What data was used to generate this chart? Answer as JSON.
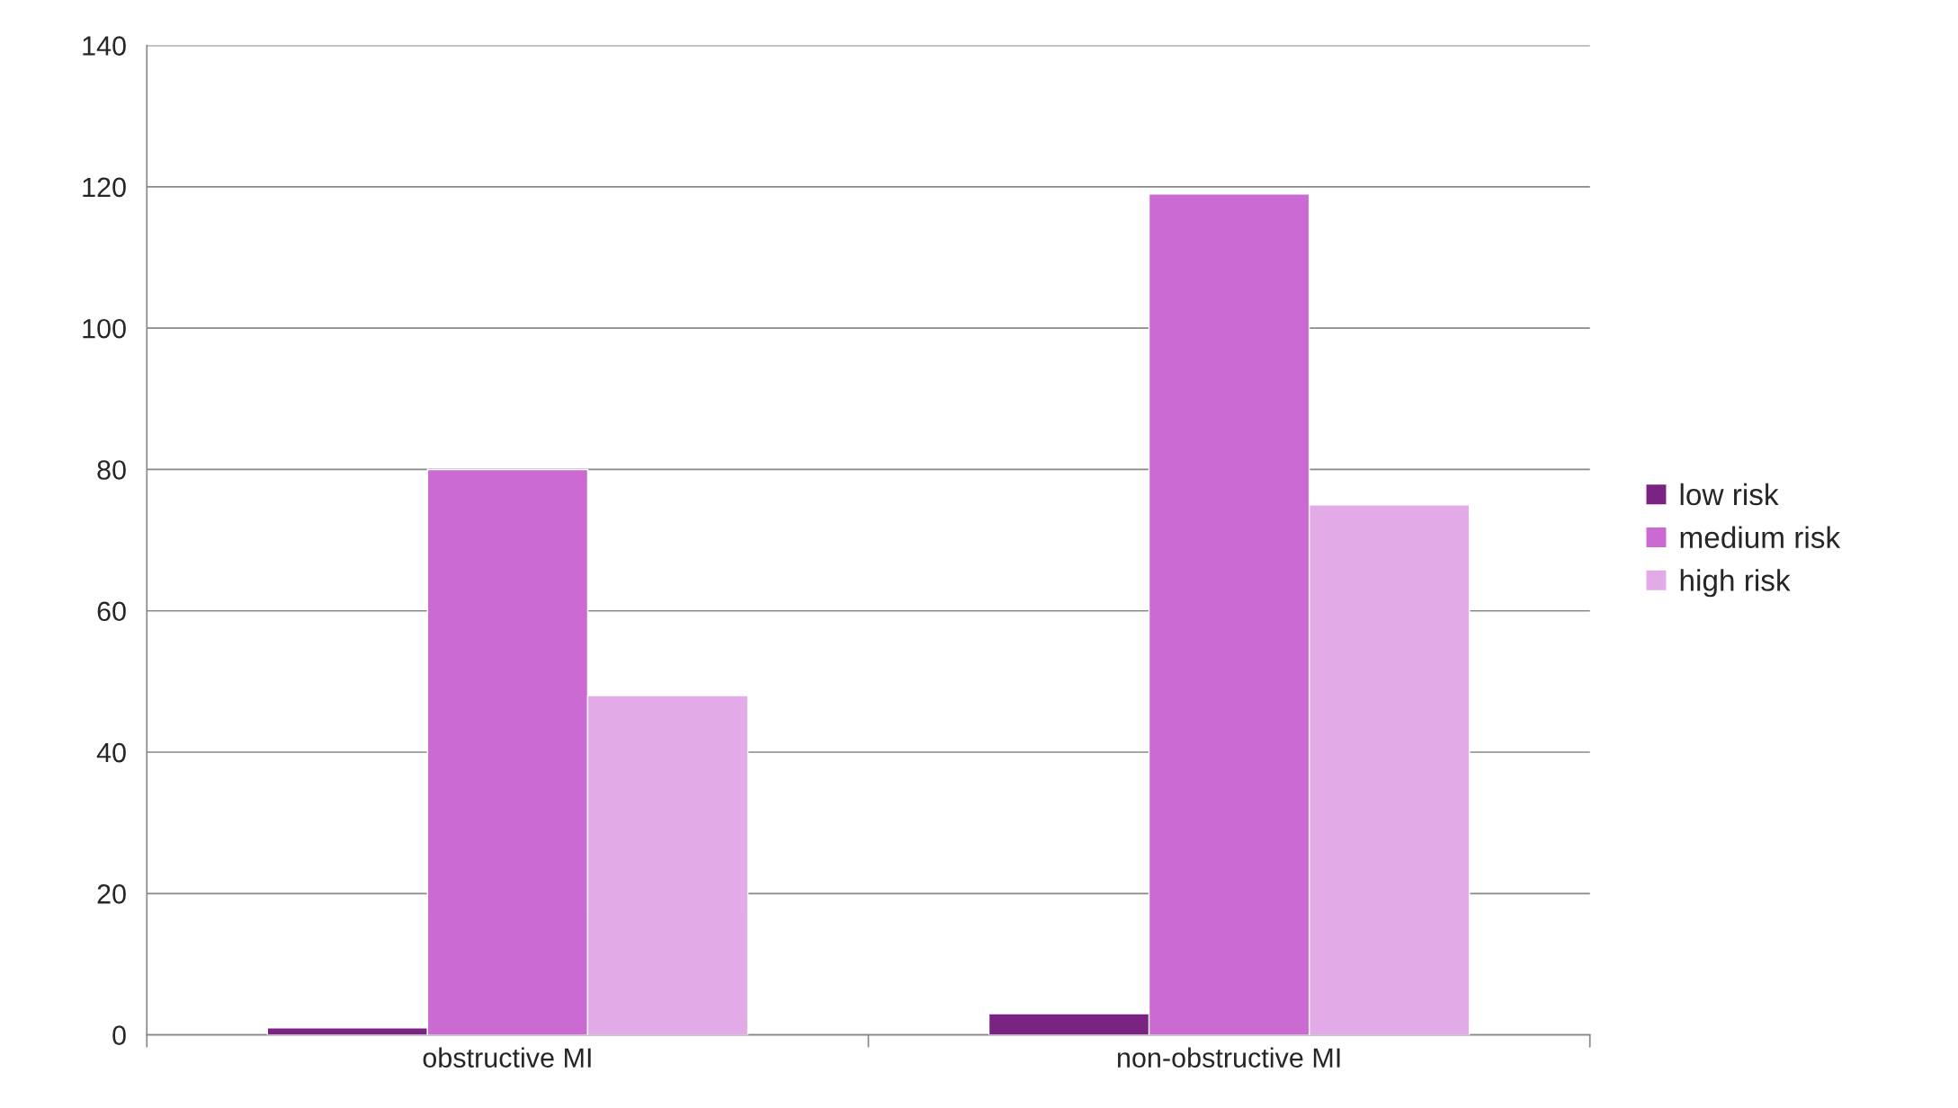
{
  "chart_data": {
    "type": "bar",
    "categories": [
      "obstructive MI",
      "non-obstructive MI"
    ],
    "series": [
      {
        "name": "low risk",
        "color": "#7b2383",
        "values": [
          1,
          3
        ]
      },
      {
        "name": "medium risk",
        "color": "#cc6ad4",
        "values": [
          80,
          119
        ]
      },
      {
        "name": "high risk",
        "color": "#e2aae6",
        "values": [
          48,
          75
        ]
      }
    ],
    "ylim": [
      0,
      140
    ],
    "yticks": [
      0,
      20,
      40,
      60,
      80,
      100,
      120,
      140
    ],
    "grid": "y",
    "legend": "right"
  }
}
